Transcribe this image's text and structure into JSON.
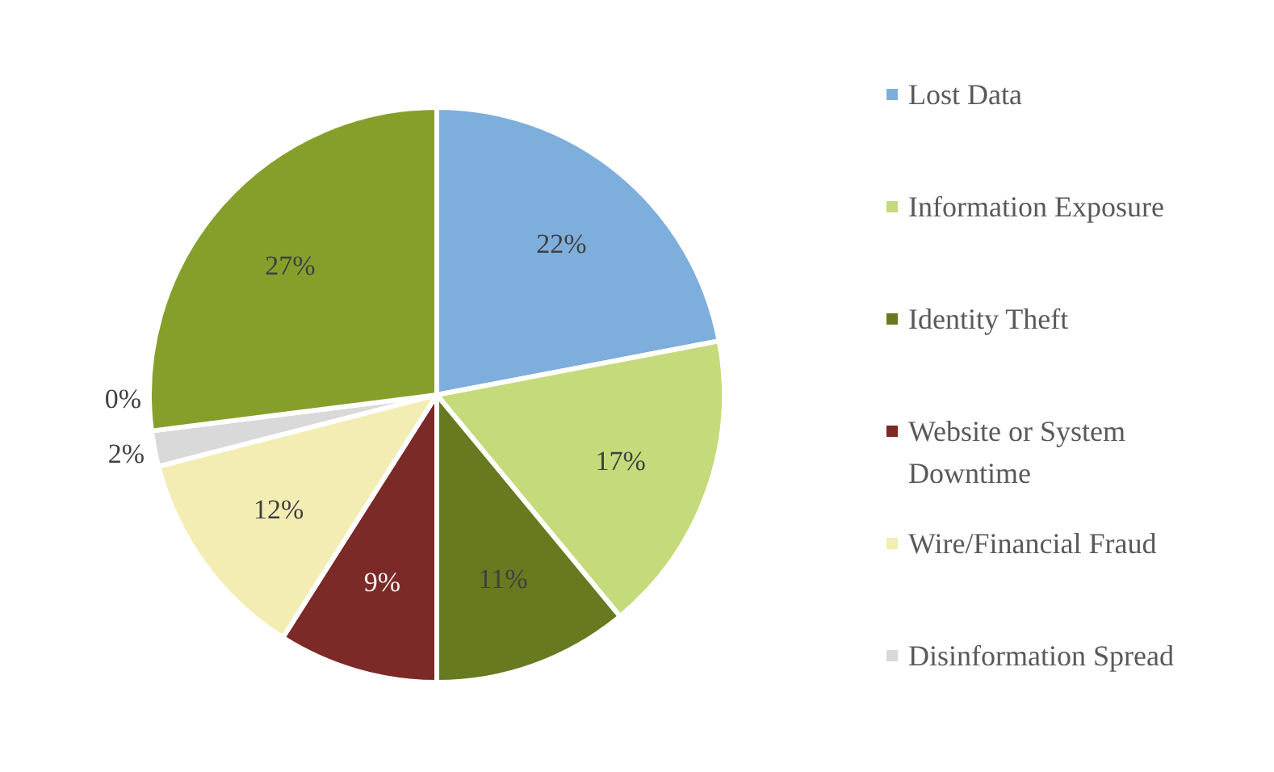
{
  "chart_data": {
    "type": "pie",
    "categories": [
      "Lost Data",
      "Information Exposure",
      "Identity Theft",
      "Website or System Downtime",
      "Wire/Financial Fraud",
      "Disinformation Spread",
      null,
      null
    ],
    "values": [
      22,
      17,
      11,
      9,
      12,
      2,
      0,
      27
    ],
    "colors": [
      "#7eaedb",
      "#c5da7a",
      "#677a20",
      "#7b2a28",
      "#f3edb3",
      "#d9d9d9",
      "#4e81bd",
      "#869f2b"
    ],
    "value_labels": [
      "22%",
      "17%",
      "11%",
      "9%",
      "12%",
      "2%",
      "0%",
      "27%"
    ],
    "legend": "right"
  }
}
